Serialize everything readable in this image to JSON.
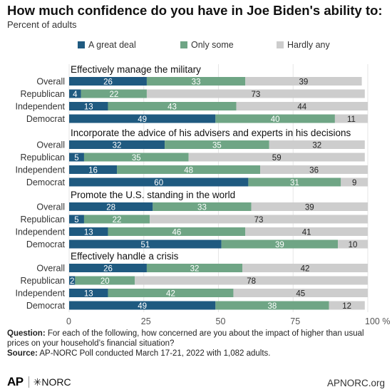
{
  "title": "How much confidence do you have in Joe Biden's ability to:",
  "subtitle": "Percent of adults",
  "legend": [
    {
      "label": "A great deal",
      "color": "#1f5a80"
    },
    {
      "label": "Only some",
      "color": "#6fa585"
    },
    {
      "label": "Hardly any",
      "color": "#cdcdcd"
    }
  ],
  "chart_data": {
    "type": "bar",
    "orientation": "horizontal",
    "stacked": true,
    "xlim": [
      0,
      100
    ],
    "x_ticks": [
      "0",
      "25",
      "50",
      "75",
      "100 %"
    ],
    "series_names": [
      "A great deal",
      "Only some",
      "Hardly any"
    ],
    "series_colors": [
      "#1f5a80",
      "#6fa585",
      "#cdcdcd"
    ],
    "groups": [
      {
        "title": "Effectively manage the military",
        "rows": [
          {
            "label": "Overall",
            "values": [
              26,
              33,
              39
            ]
          },
          {
            "label": "Republican",
            "values": [
              4,
              22,
              73
            ]
          },
          {
            "label": "Independent",
            "values": [
              13,
              43,
              44
            ]
          },
          {
            "label": "Democrat",
            "values": [
              49,
              40,
              11
            ]
          }
        ]
      },
      {
        "title": "Incorporate the advice of his advisers and experts in his decisions",
        "rows": [
          {
            "label": "Overall",
            "values": [
              32,
              35,
              32
            ]
          },
          {
            "label": "Republican",
            "values": [
              5,
              35,
              59
            ]
          },
          {
            "label": "Independent",
            "values": [
              16,
              48,
              36
            ]
          },
          {
            "label": "Democrat",
            "values": [
              60,
              31,
              9
            ]
          }
        ]
      },
      {
        "title": "Promote the U.S. standing in the world",
        "rows": [
          {
            "label": "Overall",
            "values": [
              28,
              33,
              39
            ]
          },
          {
            "label": "Republican",
            "values": [
              5,
              22,
              73
            ]
          },
          {
            "label": "Independent",
            "values": [
              13,
              46,
              41
            ]
          },
          {
            "label": "Democrat",
            "values": [
              51,
              39,
              10
            ]
          }
        ]
      },
      {
        "title": "Effectively handle a crisis",
        "rows": [
          {
            "label": "Overall",
            "values": [
              26,
              32,
              42
            ]
          },
          {
            "label": "Republican",
            "values": [
              2,
              20,
              78
            ]
          },
          {
            "label": "Independent",
            "values": [
              13,
              42,
              45
            ]
          },
          {
            "label": "Democrat",
            "values": [
              49,
              38,
              12
            ]
          }
        ]
      }
    ]
  },
  "footer": {
    "question_label": "Question:",
    "question_text": "For each of the following, how concerned are you about the impact of higher than usual prices on your household’s financial situation?",
    "source_label": "Source:",
    "source_text": "AP-NORC Poll conducted March 17-21, 2022 with 1,082 adults."
  },
  "logos": {
    "ap": "AP",
    "norc": "NORC"
  },
  "site": "APNORC.org"
}
